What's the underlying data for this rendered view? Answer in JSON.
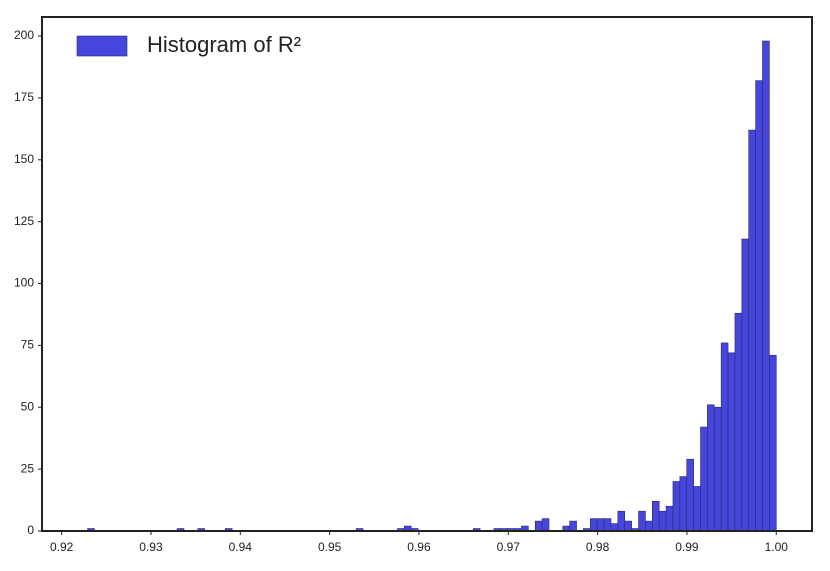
{
  "chart_data": {
    "type": "histogram",
    "series": [
      {
        "name": "Histogram of R²",
        "color": "#4646dc",
        "bins": [
          0.9229,
          0.923671,
          0.924442,
          0.925213,
          0.925984,
          0.926755,
          0.927526,
          0.928297,
          0.929068,
          0.929839,
          0.93061,
          0.931381,
          0.932152,
          0.932923,
          0.933694,
          0.934465,
          0.935236,
          0.936007,
          0.936778,
          0.937549,
          0.93832,
          0.939091,
          0.939862,
          0.940633,
          0.941404,
          0.942175,
          0.942946,
          0.943717,
          0.944488,
          0.945259,
          0.94603,
          0.946801,
          0.947572,
          0.948343,
          0.949114,
          0.949885,
          0.950656,
          0.951427,
          0.952198,
          0.952969,
          0.95374,
          0.954511,
          0.955282,
          0.956053,
          0.956824,
          0.957595,
          0.958366,
          0.959137,
          0.959908,
          0.960679,
          0.96145,
          0.962221,
          0.962992,
          0.963763,
          0.964534,
          0.965305,
          0.966076,
          0.966847,
          0.967618,
          0.968389,
          0.96916,
          0.969931,
          0.970702,
          0.971473,
          0.972244,
          0.973015,
          0.973786,
          0.974557,
          0.975328,
          0.976099,
          0.97687,
          0.977641,
          0.978412,
          0.979183,
          0.979954,
          0.980725,
          0.981496,
          0.982267,
          0.983038,
          0.983809,
          0.98458,
          0.985351,
          0.986122,
          0.986893,
          0.987664,
          0.988435,
          0.989206,
          0.989977,
          0.990748,
          0.991519,
          0.99229,
          0.993061,
          0.993832,
          0.994603,
          0.995374,
          0.996145,
          0.996916,
          0.997687,
          0.998458,
          0.999229,
          1.0
        ],
        "values": [
          1,
          0,
          0,
          0,
          0,
          0,
          0,
          0,
          0,
          0,
          0,
          0,
          0,
          1,
          0,
          0,
          1,
          0,
          0,
          0,
          1,
          0,
          0,
          0,
          0,
          0,
          0,
          0,
          0,
          0,
          0,
          0,
          0,
          0,
          0,
          0,
          0,
          0,
          0,
          1,
          0,
          0,
          0,
          0,
          0,
          1,
          2,
          1,
          0,
          0,
          0,
          0,
          0,
          0,
          0,
          0,
          1,
          0,
          0,
          1,
          1,
          1,
          1,
          2,
          0,
          4,
          5,
          0,
          0,
          2,
          4,
          0,
          1,
          5,
          5,
          5,
          3,
          8,
          4,
          1,
          8,
          4,
          12,
          8,
          10,
          20,
          22,
          29,
          18,
          42,
          51,
          50,
          76,
          72,
          88,
          118,
          162,
          182,
          198,
          71
        ]
      }
    ],
    "xlim": [
      0.9178,
      1.004
    ],
    "xticks": [
      0.92,
      0.93,
      0.94,
      0.95,
      0.96,
      0.97,
      0.98,
      0.99,
      {
        "value": 1,
        "label": "1.00"
      }
    ],
    "ylim": [
      0,
      207.7
    ],
    "yticks": [
      0,
      25,
      50,
      75,
      100,
      125,
      150,
      175,
      200
    ],
    "legend": "upper left"
  }
}
